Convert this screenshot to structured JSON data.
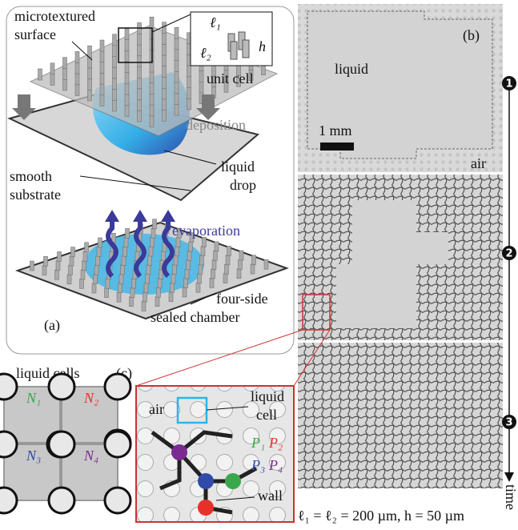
{
  "panel_a": {
    "label": "(a)",
    "microtextured": "microtextured",
    "surface": "surface",
    "unit_cell": "unit cell",
    "l1": "ℓ₁",
    "l2": "ℓ₂",
    "h": "h",
    "deposition": "deposition",
    "smooth": "smooth",
    "substrate": "substrate",
    "liquid": "liquid",
    "drop": "drop",
    "evaporation": "evaporation",
    "four_side": "four-side",
    "sealed_chamber": "sealed chamber"
  },
  "panel_b": {
    "label": "(b)",
    "liquid": "liquid",
    "scale": "1 mm",
    "air": "air",
    "steps": [
      "1",
      "2",
      "3"
    ],
    "time": "time",
    "caption": "ℓ₁ = ℓ₂ = 200 µm, h = 50 µm"
  },
  "panel_c": {
    "label": "(c)",
    "title": "liquid cells",
    "cells": [
      "N₁",
      "N₂",
      "N₃",
      "N₄"
    ],
    "air": "air",
    "liquid": "liquid",
    "cell": "cell",
    "p1": "P₁",
    "p2": "P₂",
    "p3": "P₃",
    "p4": "P₄",
    "wall": "wall"
  }
}
